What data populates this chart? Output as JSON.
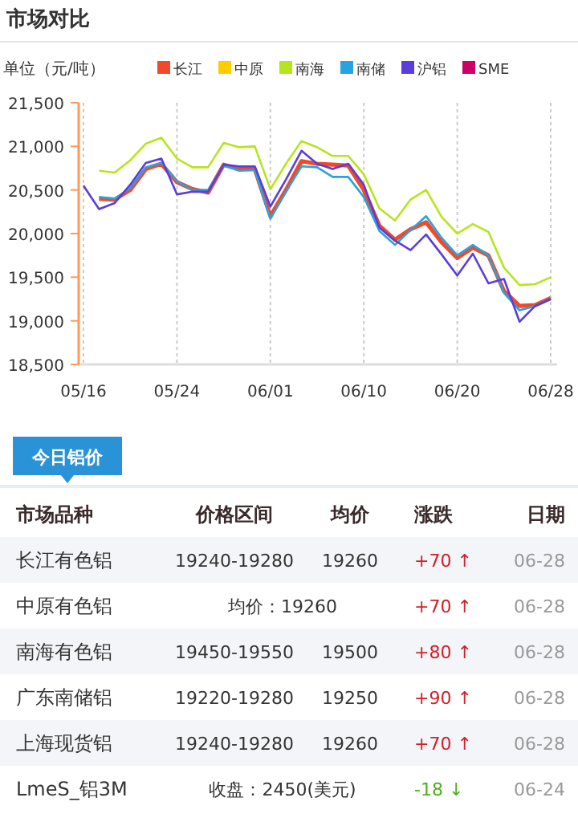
{
  "chart_data": [
    {
      "type": "line",
      "title": "市场对比",
      "ylabel": "单位（元/吨）",
      "categories": [
        "05/16",
        null,
        null,
        null,
        null,
        null,
        "05/24",
        null,
        null,
        null,
        null,
        null,
        "06/01",
        null,
        null,
        null,
        null,
        null,
        "06/10",
        null,
        null,
        null,
        null,
        null,
        "06/20",
        null,
        null,
        null,
        null,
        null,
        "06/28"
      ],
      "series": [
        {
          "name": "长江",
          "color": "#f04a2a",
          "values": [
            null,
            20400,
            20390,
            20500,
            20740,
            20800,
            20590,
            20510,
            20470,
            20790,
            20740,
            20740,
            20200,
            20500,
            20830,
            20800,
            20790,
            20780,
            20500,
            20090,
            19930,
            20050,
            20130,
            19900,
            19720,
            19840,
            19750,
            19340,
            19170,
            19180,
            19260
          ]
        },
        {
          "name": "中原",
          "color": "#ffcc00",
          "values": [
            null,
            null,
            null,
            null,
            null,
            null,
            null,
            null,
            null,
            null,
            null,
            null,
            null,
            null,
            null,
            null,
            null,
            null,
            null,
            null,
            null,
            null,
            null,
            null,
            null,
            null,
            null,
            null,
            null,
            null,
            null
          ]
        },
        {
          "name": "南海",
          "color": "#b5e61d",
          "values": [
            null,
            20720,
            20700,
            20840,
            21030,
            21100,
            20860,
            20760,
            20760,
            21040,
            20990,
            21000,
            20510,
            20800,
            21060,
            20990,
            20890,
            20890,
            20680,
            20290,
            20150,
            20390,
            20500,
            20190,
            20000,
            20110,
            20020,
            19610,
            19410,
            19420,
            19500
          ]
        },
        {
          "name": "南储",
          "color": "#29a3e0",
          "values": [
            null,
            20420,
            20400,
            20520,
            20760,
            20810,
            20600,
            20500,
            20500,
            20780,
            20720,
            20730,
            20170,
            20480,
            20770,
            20760,
            20650,
            20650,
            20420,
            20030,
            19870,
            20040,
            20200,
            19950,
            19750,
            19870,
            19750,
            19320,
            19120,
            19170,
            19250
          ]
        },
        {
          "name": "沪铝",
          "color": "#5b3ddb",
          "values": [
            20550,
            20280,
            20350,
            20560,
            20810,
            20860,
            20450,
            20480,
            20480,
            20790,
            20770,
            20770,
            20310,
            20620,
            20950,
            20800,
            20740,
            20800,
            20560,
            20070,
            19920,
            19810,
            19990,
            19760,
            19520,
            19770,
            19430,
            19480,
            18990,
            19170,
            19250
          ]
        },
        {
          "name": "SME",
          "color": "#cc0066",
          "values": [
            null,
            null,
            null,
            null,
            null,
            null,
            null,
            null,
            null,
            null,
            null,
            null,
            null,
            null,
            null,
            null,
            null,
            null,
            null,
            null,
            null,
            null,
            null,
            null,
            null,
            null,
            null,
            null,
            null,
            null,
            null
          ]
        }
      ],
      "ylim": [
        18500,
        21500
      ],
      "yticks": [
        {
          "value": 18500,
          "label": "18,500"
        },
        {
          "value": 19000,
          "label": "19,000"
        },
        {
          "value": 19500,
          "label": "19,500"
        },
        {
          "value": 20000,
          "label": "20,000"
        },
        {
          "value": 20500,
          "label": "20,500"
        },
        {
          "value": 21000,
          "label": "21,000"
        },
        {
          "value": 21500,
          "label": "21,500"
        }
      ],
      "grid": "x",
      "legend": "top",
      "marker": "none",
      "line_style": "solid"
    },
    {
      "type": "other",
      "title": "今日铝价",
      "annotations": [
        "市场品种",
        "价格区间",
        "均价",
        "涨跌",
        "日期",
        "长江有色铝",
        "19240-19280",
        "19260",
        "+70 ↑",
        "06-28",
        "中原有色铝",
        "均价：19260",
        "+70 ↑",
        "06-28",
        "南海有色铝",
        "19450-19550",
        "19500",
        "+80 ↑",
        "06-28",
        "广东南储铝",
        "19220-19280",
        "19250",
        "+90 ↑",
        "06-28",
        "上海现货铝",
        "19240-19280",
        "19260",
        "+70 ↑",
        "06-28",
        "LmeS_铝3M",
        "收盘：2450(美元)",
        "-18 ↓",
        "06-24"
      ]
    }
  ]
}
